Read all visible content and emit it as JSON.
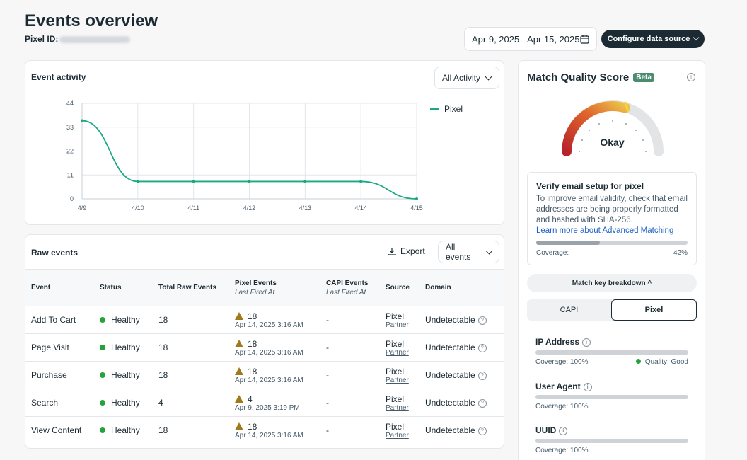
{
  "header": {
    "title": "Events overview",
    "pixel_id_label": "Pixel ID:",
    "date_range": "Apr 9, 2025 - Apr 15, 2025",
    "configure_label": "Configure data source"
  },
  "activity": {
    "title": "Event activity",
    "filter_label": "All Activity"
  },
  "chart_data": {
    "type": "line",
    "x": [
      "4/9",
      "4/10",
      "4/11",
      "4/12",
      "4/13",
      "4/14",
      "4/15"
    ],
    "series": [
      {
        "name": "Pixel",
        "values": [
          36,
          8,
          8,
          8,
          8,
          8,
          0
        ],
        "color": "#1aa983"
      }
    ],
    "yticks": [
      0,
      11,
      22,
      33,
      44
    ],
    "ylim": [
      0,
      44
    ],
    "grid": true,
    "legend": "top-right"
  },
  "raw": {
    "title": "Raw events",
    "export_label": "Export",
    "filter_label": "All events",
    "columns": {
      "event": "Event",
      "status": "Status",
      "total": "Total Raw Events",
      "pixel": "Pixel Events",
      "pixel_sub": "Last Fired At",
      "capi": "CAPI Events",
      "capi_sub": "Last Fired At",
      "source": "Source",
      "domain": "Domain"
    },
    "rows": [
      {
        "event": "Add To Cart",
        "status": "Healthy",
        "total": "18",
        "pixel_count": "18",
        "pixel_time": "Apr 14, 2025 3:16 AM",
        "capi": "-",
        "source": "Pixel",
        "source_sub": "Partner",
        "domain": "Undetectable"
      },
      {
        "event": "Page Visit",
        "status": "Healthy",
        "total": "18",
        "pixel_count": "18",
        "pixel_time": "Apr 14, 2025 3:16 AM",
        "capi": "-",
        "source": "Pixel",
        "source_sub": "Partner",
        "domain": "Undetectable"
      },
      {
        "event": "Purchase",
        "status": "Healthy",
        "total": "18",
        "pixel_count": "18",
        "pixel_time": "Apr 14, 2025 3:16 AM",
        "capi": "-",
        "source": "Pixel",
        "source_sub": "Partner",
        "domain": "Undetectable"
      },
      {
        "event": "Search",
        "status": "Healthy",
        "total": "4",
        "pixel_count": "4",
        "pixel_time": "Apr 9, 2025 3:19 PM",
        "capi": "-",
        "source": "Pixel",
        "source_sub": "Partner",
        "domain": "Undetectable"
      },
      {
        "event": "View Content",
        "status": "Healthy",
        "total": "18",
        "pixel_count": "18",
        "pixel_time": "Apr 14, 2025 3:16 AM",
        "capi": "-",
        "source": "Pixel",
        "source_sub": "Partner",
        "domain": "Undetectable"
      }
    ]
  },
  "mqs": {
    "title": "Match Quality Score",
    "beta": "Beta",
    "gauge_label": "Okay",
    "verify_title": "Verify email setup for pixel",
    "verify_body": "To improve email validity, check that email addresses are being properly formatted and hashed with SHA-256.",
    "verify_link": "Learn more about Advanced Matching",
    "coverage_label": "Coverage:",
    "coverage_value": "42%",
    "coverage_fraction": 0.42,
    "breakdown_label": "Match key breakdown ^",
    "tab_capi": "CAPI",
    "tab_pixel": "Pixel",
    "keys": [
      {
        "name": "IP Address",
        "coverage": "Coverage: 100%",
        "quality": "Quality: Good"
      },
      {
        "name": "User Agent",
        "coverage": "Coverage: 100%"
      },
      {
        "name": "UUID",
        "coverage": "Coverage: 100%"
      }
    ]
  }
}
